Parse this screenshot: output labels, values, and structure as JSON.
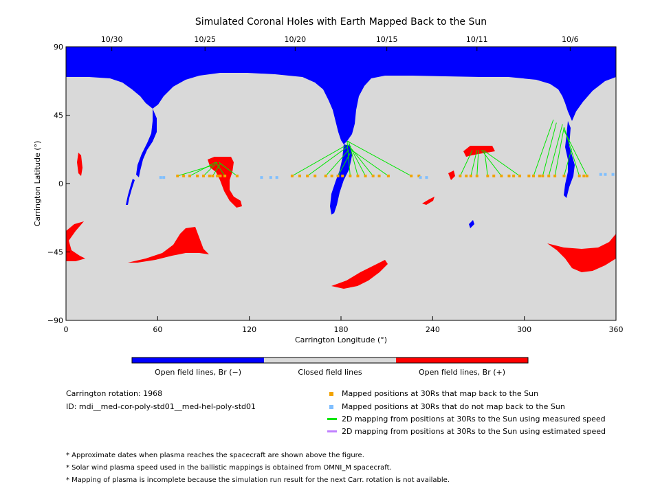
{
  "chart_data": {
    "type": "map",
    "title": "Simulated Coronal Holes with Earth Mapped Back to the Sun",
    "xlabel": "Carrington Longitude (°)",
    "ylabel": "Carrington Latitude (°)",
    "xlim": [
      0,
      360
    ],
    "ylim": [
      -90,
      90
    ],
    "x_ticks": [
      "0",
      "60",
      "120",
      "180",
      "240",
      "300",
      "360"
    ],
    "y_ticks": [
      "90",
      "45",
      "0",
      "-45",
      "-90"
    ],
    "top_axis": {
      "dates": [
        {
          "label": "10/30",
          "lon": 30
        },
        {
          "label": "10/25",
          "lon": 91
        },
        {
          "label": "10/20",
          "lon": 150
        },
        {
          "label": "10/15",
          "lon": 210
        },
        {
          "label": "10/11",
          "lon": 269
        },
        {
          "label": "10/6",
          "lon": 330
        }
      ]
    },
    "colorbar": [
      {
        "label": "Open field lines, Br (−)",
        "color": "#0000ff"
      },
      {
        "label": "Closed field lines",
        "color": "#d9d9d9"
      },
      {
        "label": "Open field lines, Br (+)",
        "color": "#ff0000"
      }
    ],
    "mapped_points": [
      [
        73,
        5
      ],
      [
        77,
        5
      ],
      [
        81,
        5
      ],
      [
        86,
        5
      ],
      [
        90,
        5
      ],
      [
        94,
        5
      ],
      [
        96,
        5
      ],
      [
        99,
        5
      ],
      [
        101,
        5
      ],
      [
        104,
        5
      ],
      [
        112,
        5
      ],
      [
        148,
        5
      ],
      [
        153,
        5
      ],
      [
        158,
        5
      ],
      [
        163,
        5
      ],
      [
        170,
        5
      ],
      [
        174,
        5
      ],
      [
        178,
        5
      ],
      [
        181,
        5
      ],
      [
        186,
        5
      ],
      [
        191,
        5
      ],
      [
        196,
        5
      ],
      [
        201,
        5
      ],
      [
        205,
        5
      ],
      [
        211,
        5
      ],
      [
        226,
        5
      ],
      [
        231,
        5
      ],
      [
        258,
        5
      ],
      [
        262,
        5
      ],
      [
        265,
        5
      ],
      [
        269,
        5
      ],
      [
        276,
        5
      ],
      [
        280,
        5
      ],
      [
        285,
        5
      ],
      [
        290,
        5
      ],
      [
        293,
        5
      ],
      [
        297,
        5
      ],
      [
        303,
        5
      ],
      [
        306,
        5
      ],
      [
        310,
        5
      ],
      [
        312,
        5
      ],
      [
        316,
        5
      ],
      [
        320,
        5
      ],
      [
        326,
        5
      ],
      [
        336,
        5
      ],
      [
        339,
        5
      ],
      [
        341,
        5
      ]
    ],
    "unmapped_points": [
      [
        62,
        4
      ],
      [
        64,
        4
      ],
      [
        128,
        4
      ],
      [
        134,
        4
      ],
      [
        138,
        4
      ],
      [
        232,
        4
      ],
      [
        236,
        4
      ],
      [
        350,
        6
      ],
      [
        353,
        6
      ],
      [
        358,
        6
      ]
    ],
    "mapping_lines": [
      [
        73,
        5,
        96,
        12
      ],
      [
        81,
        5,
        98,
        14
      ],
      [
        90,
        5,
        99,
        14
      ],
      [
        96,
        5,
        101,
        13
      ],
      [
        104,
        5,
        98,
        14
      ],
      [
        112,
        5,
        100,
        14
      ],
      [
        148,
        5,
        183,
        25
      ],
      [
        158,
        5,
        184,
        24
      ],
      [
        170,
        5,
        185,
        22
      ],
      [
        178,
        5,
        186,
        20
      ],
      [
        186,
        5,
        184,
        28
      ],
      [
        191,
        5,
        185,
        28
      ],
      [
        196,
        5,
        185,
        26
      ],
      [
        201,
        5,
        186,
        24
      ],
      [
        211,
        5,
        187,
        22
      ],
      [
        226,
        5,
        184,
        28
      ],
      [
        258,
        5,
        266,
        22
      ],
      [
        265,
        5,
        269,
        22
      ],
      [
        269,
        5,
        270,
        22
      ],
      [
        276,
        5,
        274,
        21
      ],
      [
        285,
        5,
        272,
        22
      ],
      [
        297,
        5,
        273,
        22
      ],
      [
        306,
        5,
        319,
        42
      ],
      [
        312,
        5,
        321,
        40
      ],
      [
        316,
        5,
        325,
        39
      ],
      [
        320,
        5,
        326,
        37
      ],
      [
        326,
        5,
        331,
        23
      ],
      [
        336,
        5,
        326,
        37
      ],
      [
        341,
        5,
        326,
        35
      ]
    ]
  },
  "info": {
    "rotation": "Carrington rotation: 1968",
    "id": "ID: mdi__med-cor-poly-std01__med-hel-poly-std01"
  },
  "legend": {
    "mapped": {
      "label": "Mapped positions at 30Rs that map back to the Sun",
      "color": "#f2a400"
    },
    "unmapped": {
      "label": "Mapped positions at 30Rs that do not map back to the Sun",
      "color": "#7fbfff"
    },
    "measured": {
      "label": "2D mapping from positions at 30Rs to the Sun using measured speed",
      "color": "#00e600"
    },
    "estimated": {
      "label": "2D mapping from positions at 30Rs to the Sun using estimated speed",
      "color": "#c080ff"
    }
  },
  "notes": [
    "* Approximate dates when plasma reaches the spacecraft are shown above the figure.",
    "* Solar wind plasma speed used in the ballistic mappings is obtained from OMNI_M spacecraft.",
    "* Mapping of plasma is incomplete because the simulation run result for the next Carr. rotation is not available."
  ],
  "colors": {
    "closed": "#d9d9d9",
    "open_negative": "#0000ff",
    "open_positive": "#ff0000"
  }
}
